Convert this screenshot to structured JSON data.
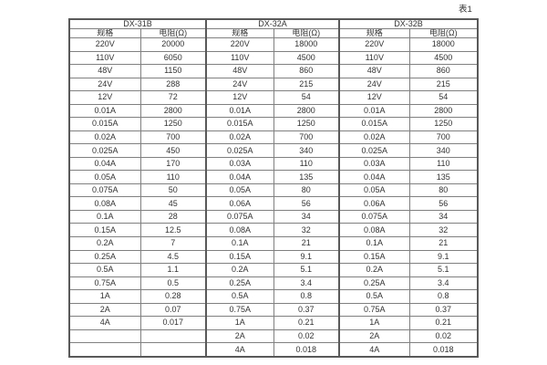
{
  "caption": "表1",
  "theme": {
    "background": "#ffffff",
    "text": "#333333",
    "border_dark": "#595959",
    "border_light": "#808080"
  },
  "table": {
    "groups": [
      {
        "name": "DX-31B",
        "spec_header": "规格",
        "res_header": "电阻(Ω)"
      },
      {
        "name": "DX-32A",
        "spec_header": "规格",
        "res_header": "电阻(Ω)"
      },
      {
        "name": "DX-32B",
        "spec_header": "规格",
        "res_header": "电阻(Ω)"
      }
    ],
    "rows": [
      [
        "220V",
        "20000",
        "220V",
        "18000",
        "220V",
        "18000"
      ],
      [
        "110V",
        "6050",
        "110V",
        "4500",
        "110V",
        "4500"
      ],
      [
        "48V",
        "1150",
        "48V",
        "860",
        "48V",
        "860"
      ],
      [
        "24V",
        "288",
        "24V",
        "215",
        "24V",
        "215"
      ],
      [
        "12V",
        "72",
        "12V",
        "54",
        "12V",
        "54"
      ],
      [
        "0.01A",
        "2800",
        "0.01A",
        "2800",
        "0.01A",
        "2800"
      ],
      [
        "0.015A",
        "1250",
        "0.015A",
        "1250",
        "0.015A",
        "1250"
      ],
      [
        "0.02A",
        "700",
        "0.02A",
        "700",
        "0.02A",
        "700"
      ],
      [
        "0.025A",
        "450",
        "0.025A",
        "340",
        "0.025A",
        "340"
      ],
      [
        "0.04A",
        "170",
        "0.03A",
        "110",
        "0.03A",
        "110"
      ],
      [
        "0.05A",
        "110",
        "0.04A",
        "135",
        "0.04A",
        "135"
      ],
      [
        "0.075A",
        "50",
        "0.05A",
        "80",
        "0.05A",
        "80"
      ],
      [
        "0.08A",
        "45",
        "0.06A",
        "56",
        "0.06A",
        "56"
      ],
      [
        "0.1A",
        "28",
        "0.075A",
        "34",
        "0.075A",
        "34"
      ],
      [
        "0.15A",
        "12.5",
        "0.08A",
        "32",
        "0.08A",
        "32"
      ],
      [
        "0.2A",
        "7",
        "0.1A",
        "21",
        "0.1A",
        "21"
      ],
      [
        "0.25A",
        "4.5",
        "0.15A",
        "9.1",
        "0.15A",
        "9.1"
      ],
      [
        "0.5A",
        "1.1",
        "0.2A",
        "5.1",
        "0.2A",
        "5.1"
      ],
      [
        "0.75A",
        "0.5",
        "0.25A",
        "3.4",
        "0.25A",
        "3.4"
      ],
      [
        "1A",
        "0.28",
        "0.5A",
        "0.8",
        "0.5A",
        "0.8"
      ],
      [
        "2A",
        "0.07",
        "0.75A",
        "0.37",
        "0.75A",
        "0.37"
      ],
      [
        "4A",
        "0.017",
        "1A",
        "0.21",
        "1A",
        "0.21"
      ],
      [
        "",
        "",
        "2A",
        "0.02",
        "2A",
        "0.02"
      ],
      [
        "",
        "",
        "4A",
        "0.018",
        "4A",
        "0.018"
      ]
    ]
  }
}
